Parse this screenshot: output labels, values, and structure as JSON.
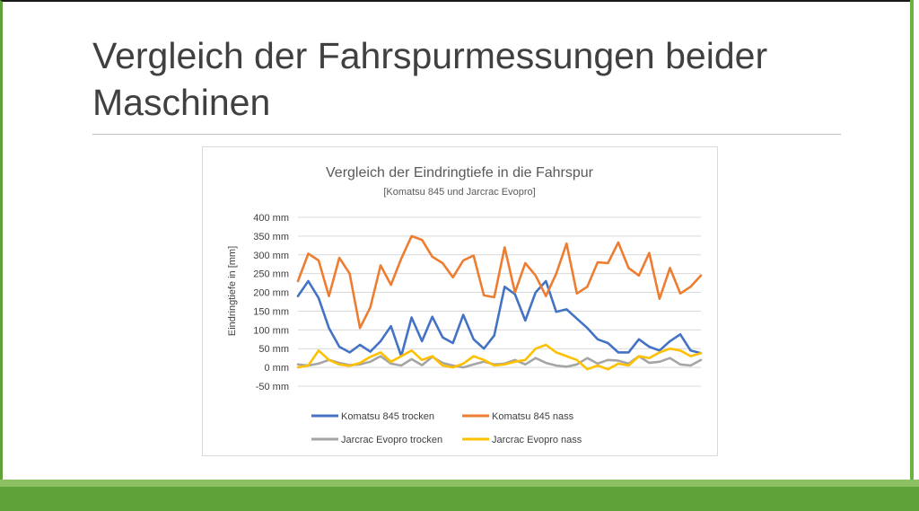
{
  "slide": {
    "title": "Vergleich der Fahrspurmessungen beider Maschinen"
  },
  "colors": {
    "komatsu_trocken": "#4472c4",
    "komatsu_nass": "#ed7d31",
    "jarcrac_trocken": "#a5a5a5",
    "jarcrac_nass": "#ffc000",
    "accent_green": "#5fa23a"
  },
  "chart_data": {
    "type": "line",
    "title": "Vergleich der Eindringtiefe in die Fahrspur",
    "subtitle": "[Komatsu 845 und Jarcrac Evopro]",
    "xlabel": "",
    "ylabel": "Eindringtiefe in [mm]",
    "ylim": [
      -50,
      400
    ],
    "yticks": [
      {
        "value": 400,
        "label": "400 mm"
      },
      {
        "value": 350,
        "label": "350 mm"
      },
      {
        "value": 300,
        "label": "300 mm"
      },
      {
        "value": 250,
        "label": "250 mm"
      },
      {
        "value": 200,
        "label": "200 mm"
      },
      {
        "value": 150,
        "label": "150 mm"
      },
      {
        "value": 100,
        "label": "100 mm"
      },
      {
        "value": 50,
        "label": "50 mm"
      },
      {
        "value": 0,
        "label": "0 mm"
      },
      {
        "value": -50,
        "label": "-50 mm"
      }
    ],
    "grid": true,
    "legend_position": "bottom",
    "series": [
      {
        "name": "Komatsu 845 trocken",
        "color": "#4472c4",
        "values": [
          190,
          230,
          185,
          105,
          55,
          40,
          60,
          42,
          70,
          110,
          30,
          133,
          70,
          135,
          80,
          65,
          140,
          75,
          50,
          85,
          215,
          195,
          125,
          200,
          230,
          148,
          155,
          130,
          105,
          75,
          65,
          40,
          40,
          75,
          55,
          45,
          70,
          88,
          45,
          38
        ]
      },
      {
        "name": "Komatsu 845 nass",
        "color": "#ed7d31",
        "values": [
          230,
          303,
          285,
          190,
          292,
          250,
          105,
          160,
          272,
          220,
          290,
          350,
          340,
          295,
          278,
          240,
          285,
          298,
          192,
          187,
          320,
          200,
          278,
          245,
          190,
          250,
          330,
          197,
          215,
          280,
          278,
          333,
          265,
          245,
          305,
          183,
          265,
          197,
          215,
          245
        ]
      },
      {
        "name": "Jarcrac Evopro trocken",
        "color": "#a5a5a5",
        "values": [
          8,
          5,
          10,
          20,
          12,
          6,
          8,
          15,
          30,
          10,
          5,
          22,
          6,
          28,
          12,
          5,
          0,
          8,
          15,
          8,
          10,
          20,
          8,
          25,
          12,
          5,
          2,
          8,
          25,
          10,
          20,
          18,
          10,
          30,
          12,
          15,
          25,
          8,
          5,
          20
        ]
      },
      {
        "name": "Jarcrac Evopro nass",
        "color": "#ffc000",
        "values": [
          0,
          5,
          45,
          20,
          8,
          4,
          12,
          28,
          40,
          15,
          30,
          45,
          20,
          30,
          5,
          0,
          10,
          30,
          20,
          5,
          8,
          15,
          20,
          50,
          60,
          40,
          30,
          20,
          -5,
          5,
          -5,
          10,
          5,
          30,
          25,
          40,
          50,
          45,
          30,
          38
        ]
      }
    ]
  }
}
